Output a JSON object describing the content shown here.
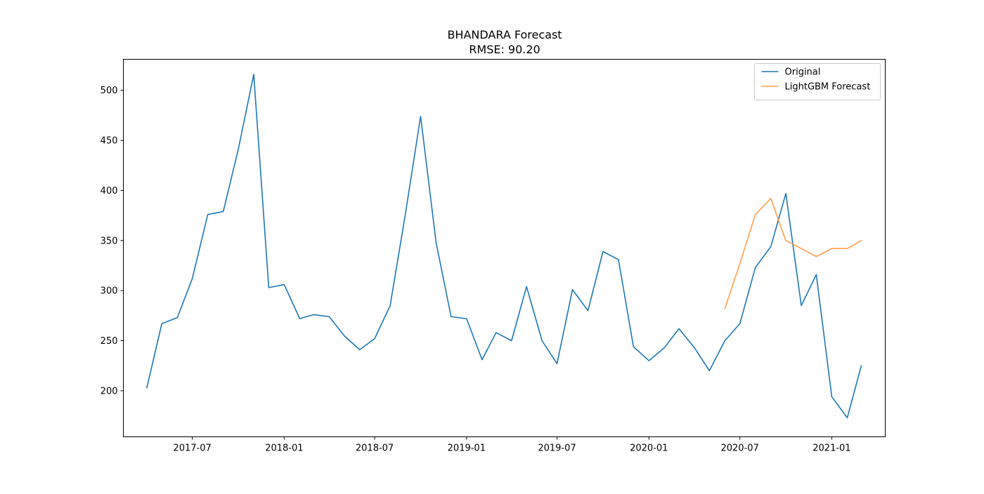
{
  "chart_data": {
    "type": "line",
    "title": "BHANDARA Forecast",
    "subtitle": "RMSE: 90.20",
    "xlabel": "",
    "ylabel": "",
    "x_ticks": [
      "2017-07",
      "2018-01",
      "2018-07",
      "2019-01",
      "2019-07",
      "2020-01",
      "2020-07",
      "2021-01"
    ],
    "y_ticks": [
      200,
      250,
      300,
      350,
      400,
      450,
      500
    ],
    "xlim": [
      "2017-02-13",
      "2021-04-18"
    ],
    "ylim": [
      154,
      531
    ],
    "grid": false,
    "legend_position": "top-right",
    "series": [
      {
        "name": "Original",
        "color": "#1f77b4",
        "x": [
          "2017-04",
          "2017-05",
          "2017-06",
          "2017-07",
          "2017-08",
          "2017-09",
          "2017-10",
          "2017-11",
          "2017-12",
          "2018-01",
          "2018-02",
          "2018-03",
          "2018-04",
          "2018-05",
          "2018-06",
          "2018-07",
          "2018-08",
          "2018-09",
          "2018-10",
          "2018-11",
          "2018-12",
          "2019-01",
          "2019-02",
          "2019-03",
          "2019-04",
          "2019-05",
          "2019-06",
          "2019-07",
          "2019-08",
          "2019-09",
          "2019-10",
          "2019-11",
          "2019-12",
          "2020-01",
          "2020-02",
          "2020-03",
          "2020-04",
          "2020-05",
          "2020-06",
          "2020-07",
          "2020-08",
          "2020-09",
          "2020-10",
          "2020-11",
          "2020-12",
          "2021-01",
          "2021-02",
          "2021-03"
        ],
        "y": [
          203,
          267,
          273,
          312,
          376,
          379,
          441,
          516,
          303,
          306,
          272,
          276,
          274,
          255,
          241,
          252,
          285,
          378,
          474,
          348,
          274,
          272,
          231,
          258,
          250,
          304,
          250,
          227,
          301,
          280,
          339,
          331,
          244,
          230,
          243,
          262,
          243,
          220,
          250,
          267,
          323,
          344,
          397,
          285,
          316,
          194,
          173,
          225
        ]
      },
      {
        "name": "LightGBM Forecast",
        "color": "#ffa04a",
        "x": [
          "2020-06",
          "2020-07",
          "2020-08",
          "2020-09",
          "2020-10",
          "2020-11",
          "2020-12",
          "2021-01",
          "2021-02",
          "2021-03"
        ],
        "y": [
          282,
          327,
          376,
          392,
          350,
          342,
          334,
          342,
          342,
          350
        ]
      }
    ]
  }
}
